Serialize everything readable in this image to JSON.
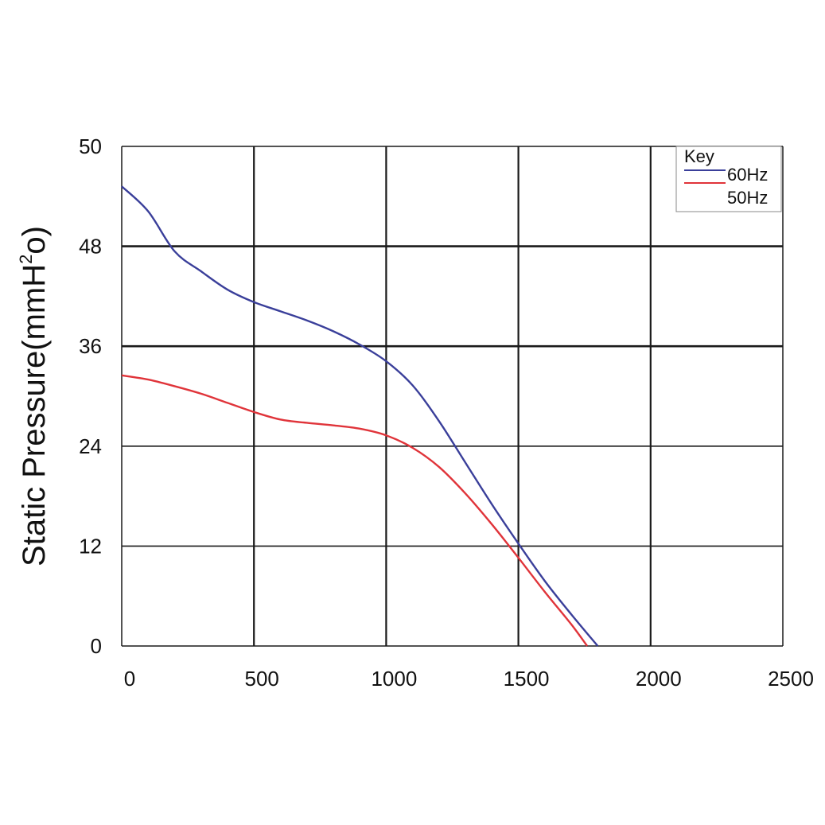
{
  "chart_data": {
    "type": "line",
    "title": "",
    "xlabel": "",
    "ylabel": "Static Pressure(mmH²o)",
    "ylabel_parts": {
      "pre": "Static Pressure(mmH",
      "sup": "2",
      "post": "o)"
    },
    "x_ticks": [
      "0",
      "500",
      "1000",
      "1500",
      "2000",
      "2500"
    ],
    "y_ticks": [
      "0",
      "12",
      "24",
      "36",
      "48",
      "50"
    ],
    "xlim": [
      0,
      2500
    ],
    "grid": true,
    "legend": {
      "title": "Key",
      "placement": "top-right"
    },
    "series": [
      {
        "name": "60Hz",
        "color": "#3a3f9a",
        "points": [
          [
            0,
            49.2
          ],
          [
            100,
            48.7
          ],
          [
            200,
            47.4
          ],
          [
            300,
            45.0
          ],
          [
            400,
            42.8
          ],
          [
            500,
            41.3
          ],
          [
            600,
            40.2
          ],
          [
            700,
            39.1
          ],
          [
            800,
            37.8
          ],
          [
            900,
            36.2
          ],
          [
            1000,
            34.2
          ],
          [
            1100,
            31.3
          ],
          [
            1200,
            27.0
          ],
          [
            1300,
            22.0
          ],
          [
            1400,
            17.0
          ],
          [
            1500,
            12.3
          ],
          [
            1600,
            7.8
          ],
          [
            1700,
            3.8
          ],
          [
            1800,
            0
          ]
        ]
      },
      {
        "name": "50Hz",
        "color": "#e0343a",
        "points": [
          [
            0,
            32.5
          ],
          [
            100,
            32.0
          ],
          [
            200,
            31.2
          ],
          [
            300,
            30.3
          ],
          [
            400,
            29.2
          ],
          [
            500,
            28.1
          ],
          [
            600,
            27.2
          ],
          [
            700,
            26.8
          ],
          [
            800,
            26.5
          ],
          [
            900,
            26.1
          ],
          [
            1000,
            25.3
          ],
          [
            1100,
            23.8
          ],
          [
            1200,
            21.5
          ],
          [
            1300,
            18.3
          ],
          [
            1400,
            14.6
          ],
          [
            1500,
            10.6
          ],
          [
            1600,
            6.5
          ],
          [
            1700,
            2.6
          ],
          [
            1760,
            0
          ]
        ]
      }
    ]
  }
}
